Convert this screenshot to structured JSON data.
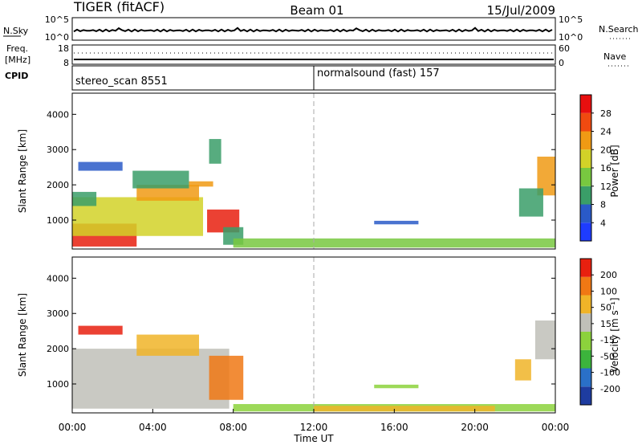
{
  "header": {
    "title_left": "TIGER (fitACF)",
    "title_center": "Beam 01",
    "title_right": "15/Jul/2009"
  },
  "top_panels": {
    "nsky": {
      "label": "N.Sky",
      "ticks_left": [
        "10^5",
        "10^0"
      ],
      "ticks_right": [
        "10^5",
        "10^0"
      ],
      "right_label": "N.Search"
    },
    "freq": {
      "label_line1": "Freq.",
      "label_line2": "[MHz]",
      "ticks_left": [
        "18",
        "8"
      ],
      "ticks_right": [
        "60",
        "0"
      ],
      "right_label": "Nave"
    },
    "cpid": {
      "label": "CPID",
      "segments": [
        {
          "text": "stereo_scan 8551",
          "start_hour": 0
        },
        {
          "text": "normalsound (fast) 157",
          "start_hour": 12
        }
      ]
    }
  },
  "chart_data": [
    {
      "type": "heatmap",
      "ylabel": "Slant Range [km]",
      "y_ticks": [
        "4000",
        "3000",
        "2000",
        "1000"
      ],
      "y_tick_values": [
        4000,
        3000,
        2000,
        1000
      ],
      "ylim": [
        180,
        4600
      ],
      "xlim": [
        0,
        24
      ],
      "colorbar": {
        "label": "Power [dB]",
        "tick_labels": [
          "28",
          "24",
          "20",
          "16",
          "12",
          "8",
          "4"
        ],
        "colors": [
          "#1e3cff",
          "#2a5ac8",
          "#3a9e68",
          "#78c840",
          "#d2d228",
          "#f09a14",
          "#f04a10",
          "#e80f0f"
        ]
      },
      "regions": [
        {
          "t0": 0.0,
          "t1": 3.2,
          "r0": 250,
          "r1": 900,
          "color": "#e8200f"
        },
        {
          "t0": 0.0,
          "t1": 6.5,
          "r0": 550,
          "r1": 1650,
          "color": "#d2d228"
        },
        {
          "t0": 0.0,
          "t1": 1.2,
          "r0": 1400,
          "r1": 1800,
          "color": "#3a9e68"
        },
        {
          "t0": 3.2,
          "t1": 6.3,
          "r0": 1550,
          "r1": 2000,
          "color": "#f09a14"
        },
        {
          "t0": 3.0,
          "t1": 5.8,
          "r0": 1900,
          "r1": 2400,
          "color": "#3a9e68"
        },
        {
          "t0": 5.8,
          "t1": 7.0,
          "r0": 1950,
          "r1": 2100,
          "color": "#f09a14"
        },
        {
          "t0": 6.7,
          "t1": 8.3,
          "r0": 650,
          "r1": 1300,
          "color": "#e8200f"
        },
        {
          "t0": 7.5,
          "t1": 8.5,
          "r0": 300,
          "r1": 800,
          "color": "#3a9e68"
        },
        {
          "t0": 0.3,
          "t1": 2.5,
          "r0": 2400,
          "r1": 2650,
          "color": "#2a5ac8"
        },
        {
          "t0": 6.8,
          "t1": 7.4,
          "r0": 2600,
          "r1": 3300,
          "color": "#3a9e68"
        },
        {
          "t0": 8.0,
          "t1": 24.0,
          "r0": 220,
          "r1": 480,
          "color": "#78c840"
        },
        {
          "t0": 15.0,
          "t1": 17.2,
          "r0": 880,
          "r1": 980,
          "color": "#2a5ac8"
        },
        {
          "t0": 23.1,
          "t1": 24.0,
          "r0": 1700,
          "r1": 2800,
          "color": "#f09a14"
        },
        {
          "t0": 22.2,
          "t1": 23.4,
          "r0": 1100,
          "r1": 1900,
          "color": "#3a9e68"
        }
      ]
    },
    {
      "type": "heatmap",
      "ylabel": "Slant Range [km]",
      "xlabel": "Time UT",
      "y_ticks": [
        "4000",
        "3000",
        "2000",
        "1000"
      ],
      "y_tick_values": [
        4000,
        3000,
        2000,
        1000
      ],
      "ylim": [
        180,
        4600
      ],
      "xlim": [
        0,
        24
      ],
      "x_ticks": [
        "00:00",
        "04:00",
        "08:00",
        "12:00",
        "16:00",
        "20:00",
        "00:00"
      ],
      "x_tick_values": [
        0,
        4,
        8,
        12,
        16,
        20,
        24
      ],
      "colorbar": {
        "label": "Velocity [m s⁻¹]",
        "tick_labels": [
          "200",
          "100",
          "50",
          "15",
          "-15",
          "-50",
          "-100",
          "-200"
        ],
        "colors": [
          "#1e3ca0",
          "#2a70c8",
          "#3cb43c",
          "#8cd23c",
          "#c0c0b8",
          "#f0b428",
          "#f07814",
          "#e8200f"
        ]
      },
      "regions": [
        {
          "t0": 0.0,
          "t1": 7.8,
          "r0": 300,
          "r1": 2000,
          "color": "#c0c0b8"
        },
        {
          "t0": 3.2,
          "t1": 6.3,
          "r0": 1800,
          "r1": 2400,
          "color": "#f0b428"
        },
        {
          "t0": 6.8,
          "t1": 8.5,
          "r0": 550,
          "r1": 1800,
          "color": "#f07814"
        },
        {
          "t0": 0.3,
          "t1": 2.5,
          "r0": 2400,
          "r1": 2650,
          "color": "#e8200f"
        },
        {
          "t0": 8.0,
          "t1": 24.0,
          "r0": 220,
          "r1": 430,
          "color": "#8cd23c"
        },
        {
          "t0": 12.0,
          "t1": 21.0,
          "r0": 220,
          "r1": 380,
          "color": "#f0b428"
        },
        {
          "t0": 15.0,
          "t1": 17.2,
          "r0": 880,
          "r1": 980,
          "color": "#8cd23c"
        },
        {
          "t0": 23.0,
          "t1": 24.0,
          "r0": 1700,
          "r1": 2800,
          "color": "#c0c0b8"
        },
        {
          "t0": 22.0,
          "t1": 22.8,
          "r0": 1100,
          "r1": 1700,
          "color": "#f0b428"
        }
      ]
    }
  ]
}
